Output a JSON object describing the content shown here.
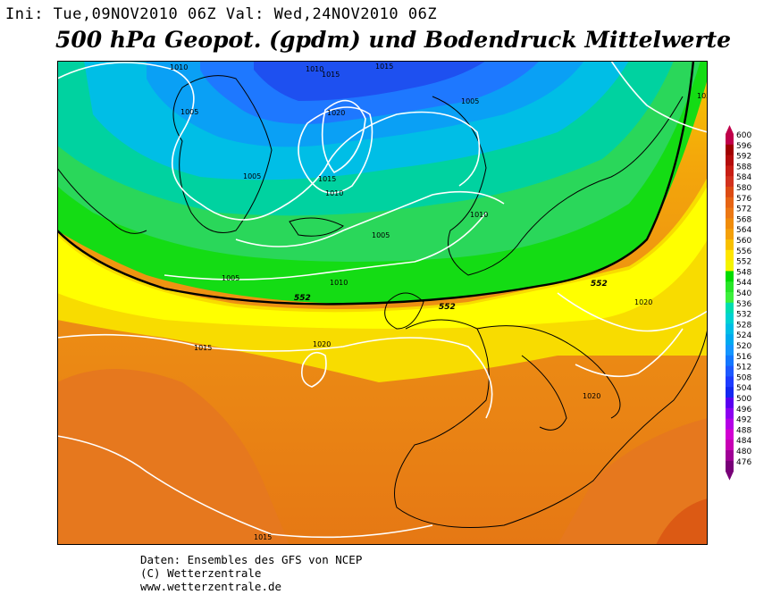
{
  "header": {
    "init_line": "Ini: Tue,09NOV2010 06Z Val: Wed,24NOV2010 06Z",
    "title": "500 hPa Geopot. (gpdm) und Bodendruck Mittelwerte"
  },
  "footer": {
    "line1": "Daten: Ensembles des GFS von NCEP",
    "line2": "(C) Wetterzentrale",
    "line3": "www.wetterzentrale.de"
  },
  "legend": {
    "levels": [
      "600",
      "596",
      "592",
      "588",
      "584",
      "580",
      "576",
      "572",
      "568",
      "564",
      "560",
      "556",
      "552",
      "548",
      "544",
      "540",
      "536",
      "532",
      "528",
      "524",
      "520",
      "516",
      "512",
      "508",
      "504",
      "500",
      "496",
      "492",
      "488",
      "484",
      "480",
      "476"
    ],
    "colors": [
      "#c0004a",
      "#a00000",
      "#b40c0c",
      "#c81e14",
      "#d2321e",
      "#dc4b14",
      "#e66414",
      "#ec7814",
      "#f08c0a",
      "#f4a00a",
      "#f8c000",
      "#ffe600",
      "#f4f400",
      "#00dc00",
      "#28e628",
      "#3cf03c",
      "#00ddb0",
      "#00d2d2",
      "#00bee6",
      "#00aaf0",
      "#1496ff",
      "#1478ff",
      "#1e5aff",
      "#1e3cff",
      "#1428f0",
      "#5a00f0",
      "#8c00f0",
      "#b400e6",
      "#d200d2",
      "#c800b4",
      "#a00096",
      "#780078"
    ]
  },
  "map": {
    "isobar_labels": [
      "1010",
      "1010",
      "1015",
      "1015",
      "1015",
      "1020",
      "1005",
      "1005",
      "1005",
      "1010",
      "1005",
      "1010",
      "1010",
      "1005",
      "1015",
      "1020",
      "1020",
      "1020",
      "1015",
      "103"
    ],
    "contour_labels": [
      "552",
      "552",
      "552"
    ]
  }
}
